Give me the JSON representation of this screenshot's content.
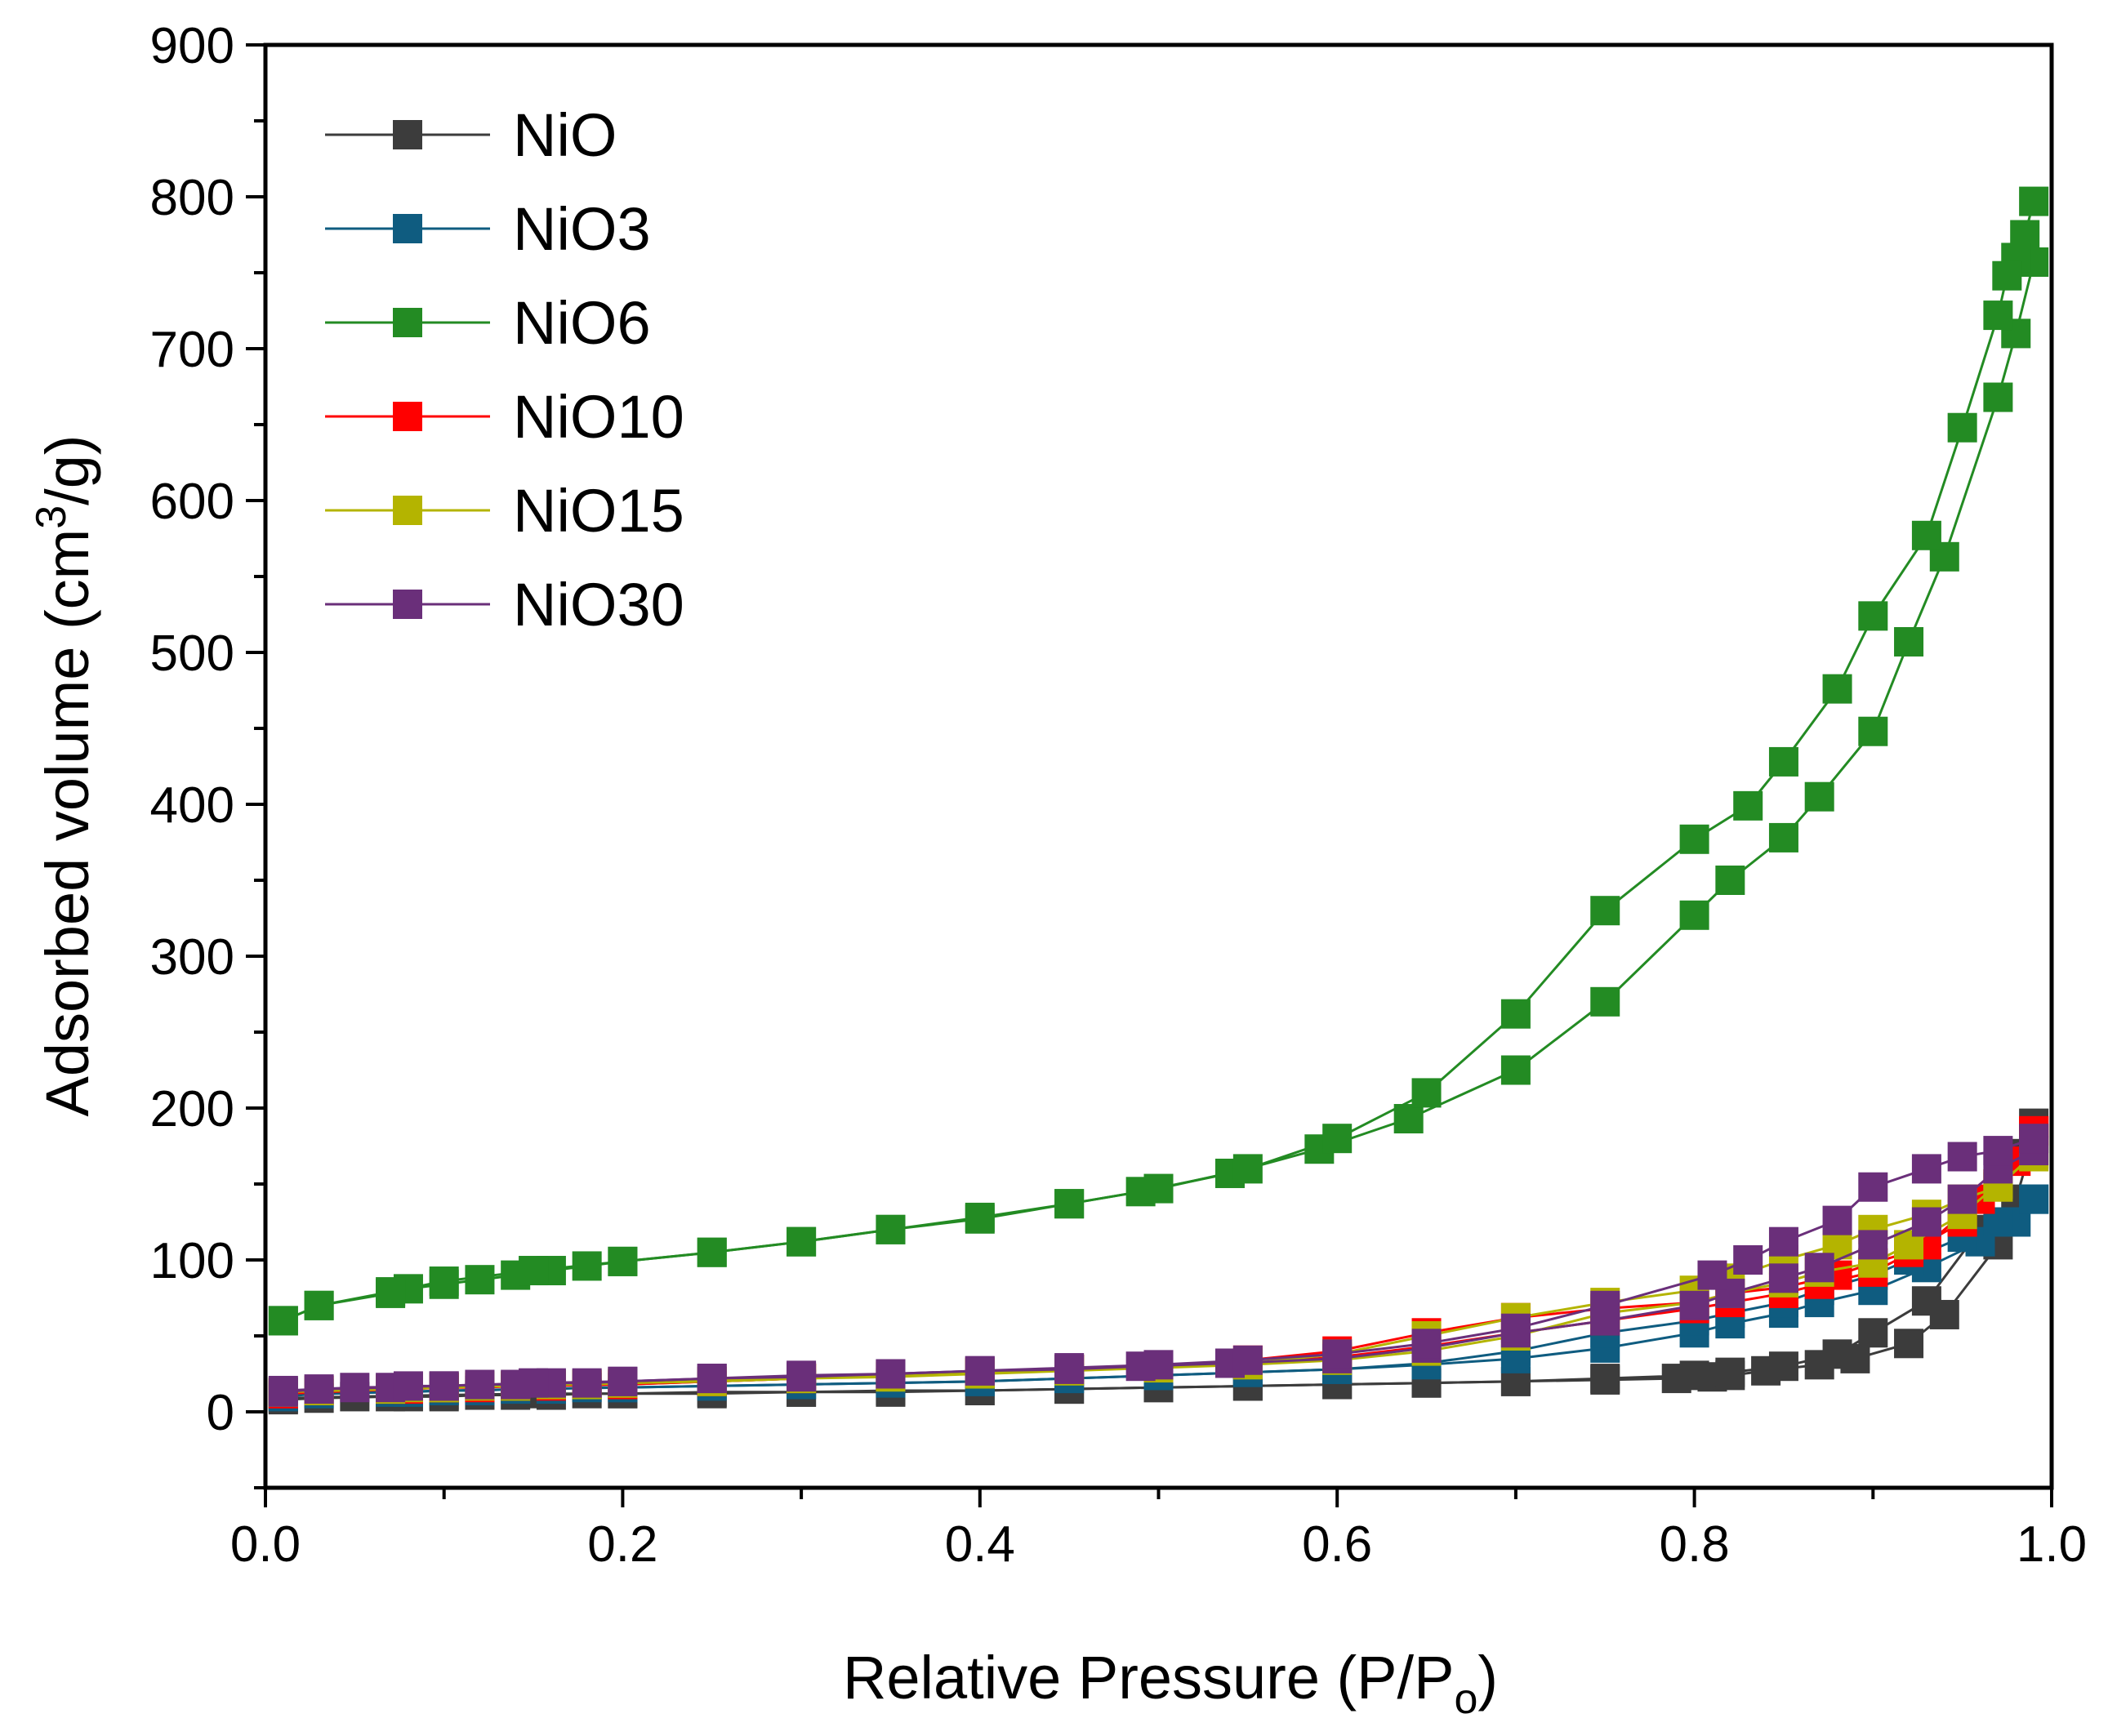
{
  "chart_data": {
    "type": "line",
    "title": "",
    "xlabel": {
      "main": "Relative Pressure (P/P",
      "sub": "o",
      "tail": ")"
    },
    "ylabel": {
      "main": "Adsorbed volume (cm",
      "sup": "3",
      "tail": "/g)"
    },
    "xlim": [
      0.0,
      1.0
    ],
    "ylim": [
      -50,
      900
    ],
    "xticks": [
      {
        "value": 0.0,
        "label": "0.0"
      },
      {
        "value": 0.2,
        "label": "0.2"
      },
      {
        "value": 0.4,
        "label": "0.4"
      },
      {
        "value": 0.6,
        "label": "0.6"
      },
      {
        "value": 0.8,
        "label": "0.8"
      },
      {
        "value": 1.0,
        "label": "1.0"
      }
    ],
    "yticks": [
      {
        "value": 0,
        "label": "0"
      },
      {
        "value": 100,
        "label": "100"
      },
      {
        "value": 200,
        "label": "200"
      },
      {
        "value": 300,
        "label": "300"
      },
      {
        "value": 400,
        "label": "400"
      },
      {
        "value": 500,
        "label": "500"
      },
      {
        "value": 600,
        "label": "600"
      },
      {
        "value": 700,
        "label": "700"
      },
      {
        "value": 800,
        "label": "800"
      },
      {
        "value": 900,
        "label": "900"
      }
    ],
    "legend_position": "top-left",
    "series": [
      {
        "name": "NiO",
        "color": "#3c3c3c",
        "adsorption": {
          "x": [
            0.01,
            0.03,
            0.07,
            0.08,
            0.1,
            0.12,
            0.14,
            0.16,
            0.18,
            0.2,
            0.25,
            0.3,
            0.35,
            0.4,
            0.45,
            0.5,
            0.55,
            0.6,
            0.65,
            0.7,
            0.75,
            0.79,
            0.81,
            0.82,
            0.84,
            0.87,
            0.89,
            0.92,
            0.94,
            0.97,
            0.98,
            0.99
          ],
          "y": [
            8,
            9,
            10,
            10,
            10,
            11,
            11,
            11,
            12,
            12,
            12,
            13,
            13,
            14,
            15,
            16,
            17,
            18,
            19,
            20,
            21,
            22,
            23,
            24,
            27,
            31,
            35,
            45,
            64,
            110,
            140,
            180
          ]
        },
        "desorption": {
          "x": [
            0.99,
            0.98,
            0.96,
            0.93,
            0.9,
            0.88,
            0.85,
            0.82,
            0.8,
            0.75,
            0.7,
            0.65,
            0.6,
            0.55,
            0.5,
            0.45,
            0.4,
            0.35,
            0.3,
            0.25,
            0.2,
            0.15,
            0.1,
            0.05,
            0.01
          ],
          "y": [
            190,
            170,
            120,
            73,
            52,
            38,
            30,
            26,
            24,
            22,
            20,
            19,
            18,
            17,
            16,
            15,
            14,
            14,
            13,
            13,
            12,
            12,
            11,
            10,
            9
          ]
        }
      },
      {
        "name": "NiO3",
        "color": "#0f5c80",
        "adsorption": {
          "x": [
            0.01,
            0.03,
            0.07,
            0.08,
            0.1,
            0.12,
            0.14,
            0.16,
            0.18,
            0.2,
            0.25,
            0.3,
            0.35,
            0.4,
            0.45,
            0.5,
            0.55,
            0.6,
            0.65,
            0.7,
            0.75,
            0.8,
            0.82,
            0.85,
            0.87,
            0.9,
            0.93,
            0.96,
            0.98,
            0.99
          ],
          "y": [
            10,
            12,
            13,
            13,
            14,
            14,
            15,
            15,
            16,
            16,
            17,
            18,
            19,
            20,
            22,
            24,
            26,
            28,
            31,
            35,
            42,
            52,
            58,
            65,
            72,
            80,
            95,
            112,
            125,
            140
          ]
        },
        "desorption": {
          "x": [
            0.99,
            0.97,
            0.95,
            0.92,
            0.9,
            0.87,
            0.85,
            0.82,
            0.8,
            0.75,
            0.7,
            0.65,
            0.6,
            0.55,
            0.5,
            0.45,
            0.4,
            0.3,
            0.2,
            0.1,
            0.01
          ],
          "y": [
            140,
            125,
            115,
            100,
            90,
            80,
            72,
            65,
            60,
            52,
            40,
            32,
            28,
            26,
            24,
            22,
            20,
            18,
            16,
            14,
            11
          ]
        }
      },
      {
        "name": "NiO6",
        "color": "#238b23",
        "adsorption": {
          "x": [
            0.01,
            0.03,
            0.07,
            0.08,
            0.1,
            0.12,
            0.14,
            0.16,
            0.18,
            0.2,
            0.25,
            0.3,
            0.35,
            0.4,
            0.45,
            0.49,
            0.54,
            0.59,
            0.64,
            0.7,
            0.75,
            0.8,
            0.82,
            0.85,
            0.87,
            0.9,
            0.92,
            0.94,
            0.97,
            0.98,
            0.99
          ],
          "y": [
            60,
            70,
            78,
            81,
            84,
            87,
            90,
            93,
            96,
            99,
            105,
            112,
            120,
            128,
            137,
            145,
            157,
            173,
            193,
            225,
            270,
            327,
            350,
            378,
            405,
            448,
            507,
            563,
            668,
            710,
            757
          ]
        },
        "desorption": {
          "x": [
            0.99,
            0.985,
            0.98,
            0.975,
            0.97,
            0.95,
            0.93,
            0.9,
            0.88,
            0.85,
            0.83,
            0.8,
            0.75,
            0.7,
            0.65,
            0.6,
            0.55,
            0.5,
            0.45,
            0.4,
            0.35,
            0.3,
            0.25,
            0.2,
            0.15,
            0.1,
            0.07,
            0.03,
            0.01
          ],
          "y": [
            797,
            775,
            760,
            748,
            722,
            648,
            577,
            524,
            476,
            428,
            399,
            377,
            330,
            262,
            210,
            180,
            160,
            147,
            137,
            127,
            120,
            112,
            105,
            99,
            93,
            86,
            79,
            70,
            60
          ]
        }
      },
      {
        "name": "NiO10",
        "color": "#ff0000",
        "adsorption": {
          "x": [
            0.01,
            0.03,
            0.07,
            0.08,
            0.1,
            0.12,
            0.14,
            0.16,
            0.18,
            0.2,
            0.25,
            0.3,
            0.35,
            0.4,
            0.45,
            0.5,
            0.55,
            0.6,
            0.65,
            0.7,
            0.75,
            0.8,
            0.82,
            0.85,
            0.87,
            0.9,
            0.93,
            0.96,
            0.98,
            0.99
          ],
          "y": [
            12,
            14,
            15,
            15,
            16,
            16,
            17,
            17,
            18,
            18,
            20,
            22,
            24,
            26,
            28,
            30,
            32,
            36,
            43,
            52,
            60,
            68,
            72,
            78,
            84,
            92,
            110,
            140,
            165,
            185
          ]
        },
        "desorption": {
          "x": [
            0.99,
            0.97,
            0.95,
            0.92,
            0.9,
            0.88,
            0.85,
            0.82,
            0.8,
            0.75,
            0.7,
            0.65,
            0.6,
            0.55,
            0.5,
            0.45,
            0.4,
            0.3,
            0.2,
            0.1,
            0.01
          ],
          "y": [
            185,
            150,
            125,
            105,
            98,
            90,
            82,
            78,
            72,
            68,
            62,
            52,
            40,
            34,
            30,
            28,
            26,
            22,
            18,
            16,
            12
          ]
        }
      },
      {
        "name": "NiO15",
        "color": "#b4b400",
        "adsorption": {
          "x": [
            0.01,
            0.03,
            0.07,
            0.08,
            0.1,
            0.12,
            0.14,
            0.16,
            0.18,
            0.2,
            0.25,
            0.3,
            0.35,
            0.4,
            0.45,
            0.5,
            0.55,
            0.6,
            0.65,
            0.7,
            0.75,
            0.8,
            0.82,
            0.85,
            0.87,
            0.9,
            0.92,
            0.95,
            0.97,
            0.99
          ],
          "y": [
            13,
            14,
            15,
            16,
            16,
            17,
            17,
            18,
            18,
            19,
            20,
            22,
            23,
            25,
            27,
            29,
            31,
            34,
            40,
            50,
            65,
            72,
            78,
            85,
            92,
            98,
            110,
            130,
            150,
            168
          ]
        },
        "desorption": {
          "x": [
            0.99,
            0.97,
            0.95,
            0.93,
            0.9,
            0.88,
            0.85,
            0.82,
            0.8,
            0.75,
            0.7,
            0.65,
            0.6,
            0.55,
            0.5,
            0.45,
            0.4,
            0.3,
            0.2,
            0.1,
            0.01
          ],
          "y": [
            170,
            148,
            140,
            130,
            120,
            110,
            100,
            88,
            80,
            72,
            62,
            50,
            38,
            32,
            30,
            28,
            26,
            22,
            19,
            16,
            13
          ]
        }
      },
      {
        "name": "NiO30",
        "color": "#6a2f7a",
        "adsorption": {
          "x": [
            0.01,
            0.03,
            0.07,
            0.08,
            0.1,
            0.12,
            0.14,
            0.16,
            0.18,
            0.2,
            0.25,
            0.3,
            0.35,
            0.4,
            0.45,
            0.49,
            0.54,
            0.6,
            0.65,
            0.7,
            0.75,
            0.8,
            0.82,
            0.85,
            0.87,
            0.9,
            0.93,
            0.95,
            0.97,
            0.99
          ],
          "y": [
            13,
            15,
            16,
            17,
            17,
            18,
            18,
            19,
            19,
            20,
            22,
            23,
            25,
            27,
            28,
            30,
            32,
            35,
            42,
            52,
            60,
            70,
            78,
            88,
            95,
            110,
            125,
            140,
            160,
            172
          ]
        },
        "desorption": {
          "x": [
            0.99,
            0.97,
            0.95,
            0.93,
            0.9,
            0.88,
            0.85,
            0.83,
            0.81,
            0.75,
            0.7,
            0.65,
            0.6,
            0.55,
            0.5,
            0.45,
            0.4,
            0.35,
            0.3,
            0.25,
            0.2,
            0.15,
            0.1,
            0.05,
            0.01
          ],
          "y": [
            180,
            172,
            168,
            160,
            148,
            126,
            112,
            100,
            90,
            70,
            55,
            45,
            38,
            34,
            31,
            29,
            27,
            25,
            24,
            22,
            20,
            19,
            17,
            16,
            14
          ]
        }
      }
    ]
  }
}
